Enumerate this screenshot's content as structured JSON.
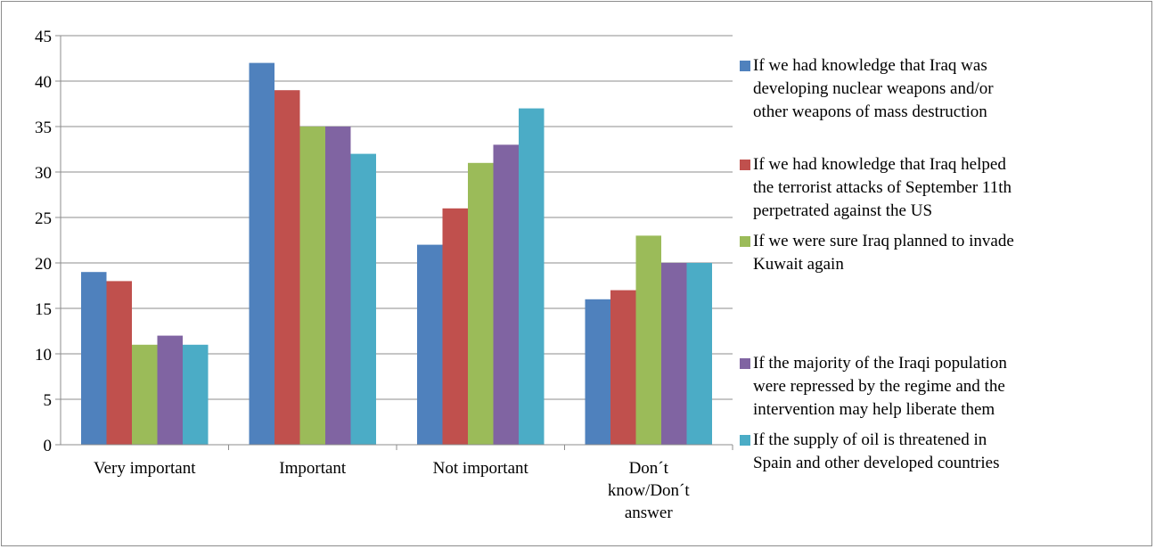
{
  "chart_data": {
    "type": "bar",
    "categories": [
      "Very important",
      "Important",
      "Not important",
      "Don´t know/Don´t answer"
    ],
    "category_lines": [
      [
        "Very important"
      ],
      [
        "Important"
      ],
      [
        "Not important"
      ],
      [
        "Don´t",
        "know/Don´t",
        "answer"
      ]
    ],
    "series": [
      {
        "name": "If we had knowledge that Iraq was developing nuclear weapons and/or other weapons of mass destruction",
        "color": "#4f81bd",
        "values": [
          19,
          42,
          22,
          16
        ]
      },
      {
        "name": "If we had knowledge that Iraq helped the terrorist attacks of September 11th perpetrated against the US",
        "color": "#c0504d",
        "values": [
          18,
          39,
          26,
          17
        ]
      },
      {
        "name": "If we were sure Iraq planned to invade Kuwait again",
        "color": "#9bbb59",
        "values": [
          11,
          35,
          31,
          23
        ]
      },
      {
        "name": "If the majority of the Iraqi population were repressed by the regime and the intervention may help liberate them",
        "color": "#8064a2",
        "values": [
          12,
          35,
          33,
          20
        ]
      },
      {
        "name": "If the supply of oil is threatened in Spain and other developed countries",
        "color": "#4bacc6",
        "values": [
          11,
          32,
          37,
          20
        ]
      }
    ],
    "ylim": [
      0,
      45
    ],
    "yticks": [
      0,
      5,
      10,
      15,
      20,
      25,
      30,
      35,
      40,
      45
    ],
    "grid": true,
    "legend_position": "right"
  },
  "legend_lines": [
    [
      "If we had knowledge that Iraq was",
      "developing nuclear weapons and/or",
      "other weapons of mass destruction"
    ],
    [
      "If we had knowledge that Iraq helped",
      "the terrorist attacks of September 11th",
      "perpetrated against the US"
    ],
    [
      "If we were sure Iraq planned to invade",
      "Kuwait again"
    ],
    [
      "If the majority of the Iraqi population",
      "were repressed by the regime and the",
      "intervention may help liberate them"
    ],
    [
      "If the supply of oil is threatened in",
      "Spain and other developed countries"
    ]
  ]
}
